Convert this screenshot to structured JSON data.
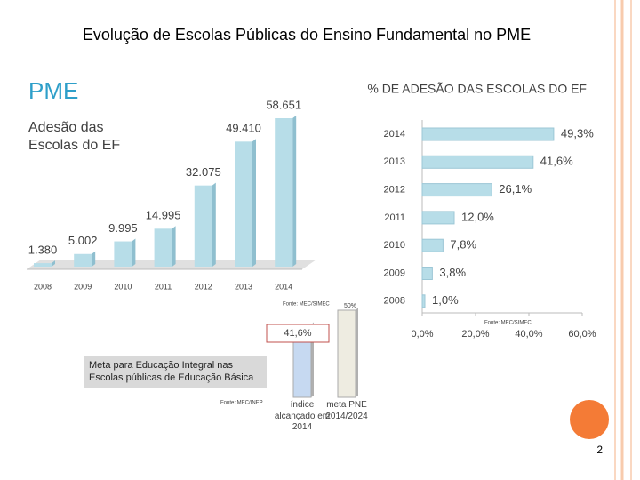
{
  "slide": {
    "title": "Evolução de Escolas Públicas do Ensino Fundamental no PME",
    "heading": "PME",
    "page_number": "2"
  },
  "chart_data": [
    {
      "type": "bar",
      "title": "Adesão das Escolas do EF",
      "source": "Fonte: MEC/SIMEC",
      "categories": [
        "2008",
        "2009",
        "2010",
        "2011",
        "2012",
        "2013",
        "2014"
      ],
      "values": [
        1380,
        5002,
        9995,
        14995,
        32075,
        49410,
        58651
      ],
      "value_labels": [
        "1.380",
        "5.002",
        "9.995",
        "14.995",
        "32.075",
        "49.410",
        "58.651"
      ],
      "color": "#b7dde8"
    },
    {
      "type": "hbar",
      "title": "% DE ADESÃO DAS ESCOLAS DO EF",
      "source": "Fonte: MEC/SIMEC",
      "categories": [
        "2014",
        "2013",
        "2012",
        "2011",
        "2010",
        "2009",
        "2008"
      ],
      "values": [
        49.3,
        41.6,
        26.1,
        12.0,
        7.8,
        3.8,
        1.0
      ],
      "value_labels": [
        "49,3%",
        "41,6%",
        "26,1%",
        "12,0%",
        "7,8%",
        "3,8%",
        "1,0%"
      ],
      "xlim": [
        0,
        60
      ],
      "xticks": [
        {
          "value": 0,
          "label": "0,0%"
        },
        {
          "value": 20,
          "label": "20,0%"
        },
        {
          "value": 40,
          "label": "40,0%"
        },
        {
          "value": 60,
          "label": "60,0%"
        }
      ],
      "color": "#b7dde8"
    },
    {
      "type": "bar",
      "title": "Meta para Educação Integral nas Escolas públicas de Educação Básica",
      "source": "Fonte: MEC/INEP",
      "categories": [
        "índice alcançado em 2014",
        "meta PNE 2014/2024"
      ],
      "values": [
        41.6,
        50
      ],
      "value_labels": [
        "41,6%",
        "50%"
      ],
      "colors": [
        "#c6d9f1",
        "#eeece1"
      ]
    }
  ]
}
